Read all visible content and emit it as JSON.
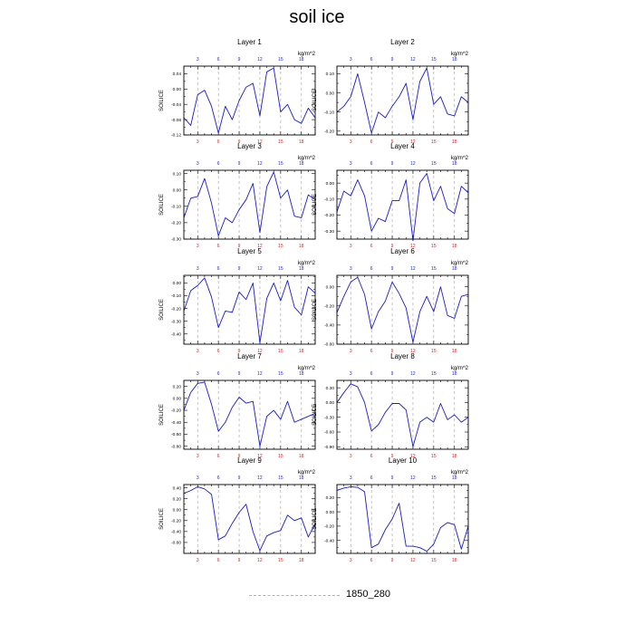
{
  "title": "soil ice",
  "legend": {
    "label": "1850_280",
    "color": "#c89ce0"
  },
  "colors": {
    "line": "#1a1acc",
    "top_ticks": "#2222cc",
    "bottom_ticks": "#cc2222",
    "grid": "#aaaaaa"
  },
  "chart_data": [
    {
      "type": "line",
      "title": "Layer 1",
      "units": "kg/m^2",
      "ylabel": "SOILICE",
      "x": [
        1,
        2,
        3,
        4,
        5,
        6,
        7,
        8,
        9,
        10,
        11,
        12,
        13,
        14,
        15,
        16,
        17,
        18,
        19,
        20
      ],
      "values": [
        -0.075,
        -0.095,
        -0.015,
        -0.003,
        -0.045,
        -0.115,
        -0.045,
        -0.08,
        -0.03,
        0.005,
        0.015,
        -0.07,
        0.045,
        0.055,
        -0.06,
        -0.04,
        -0.08,
        -0.09,
        -0.05,
        -0.075
      ],
      "xlim": [
        1,
        20
      ],
      "ylim": [
        -0.12,
        0.06
      ],
      "yticks": [
        0.04,
        0.0,
        -0.04,
        -0.08,
        -0.12
      ],
      "yticklabels": [
        "0.04",
        "0.00",
        "-0.04",
        "-0.08",
        "-0.12"
      ],
      "yminor": [
        0.02,
        -0.02,
        -0.06,
        -0.1
      ],
      "xticks": [
        3,
        6,
        9,
        12,
        15,
        18
      ]
    },
    {
      "type": "line",
      "title": "Layer 2",
      "units": "kg/m^2",
      "ylabel": "SOILICE",
      "x": [
        1,
        2,
        3,
        4,
        5,
        6,
        7,
        8,
        9,
        10,
        11,
        12,
        13,
        14,
        15,
        16,
        17,
        18,
        19,
        20
      ],
      "values": [
        -0.1,
        -0.07,
        -0.02,
        0.1,
        -0.05,
        -0.21,
        -0.1,
        -0.13,
        -0.07,
        -0.02,
        0.05,
        -0.14,
        0.06,
        0.13,
        -0.06,
        -0.02,
        -0.11,
        -0.12,
        -0.02,
        -0.05
      ],
      "xlim": [
        1,
        20
      ],
      "ylim": [
        -0.22,
        0.14
      ],
      "yticks": [
        0.1,
        0.0,
        -0.1,
        -0.2
      ],
      "yticklabels": [
        "0.10",
        "0.00",
        "-0.10",
        "-0.20"
      ],
      "yminor": [
        0.05,
        -0.05,
        -0.15
      ],
      "xticks": [
        3,
        6,
        9,
        12,
        15,
        18
      ]
    },
    {
      "type": "line",
      "title": "Layer 3",
      "units": "kg/m^2",
      "ylabel": "SOILICE",
      "x": [
        1,
        2,
        3,
        4,
        5,
        6,
        7,
        8,
        9,
        10,
        11,
        12,
        13,
        14,
        15,
        16,
        17,
        18,
        19,
        20
      ],
      "values": [
        -0.17,
        -0.05,
        -0.04,
        0.07,
        -0.08,
        -0.28,
        -0.17,
        -0.2,
        -0.12,
        -0.06,
        0.04,
        -0.26,
        0.02,
        0.11,
        -0.05,
        0.0,
        -0.16,
        -0.17,
        -0.03,
        -0.06
      ],
      "xlim": [
        1,
        20
      ],
      "ylim": [
        -0.3,
        0.12
      ],
      "yticks": [
        0.1,
        0.0,
        -0.1,
        -0.2,
        -0.3
      ],
      "yticklabels": [
        "0.10",
        "0.00",
        "-0.10",
        "-0.20",
        "-0.30"
      ],
      "yminor": [
        0.05,
        -0.05,
        -0.15,
        -0.25
      ],
      "xticks": [
        3,
        6,
        9,
        12,
        15,
        18
      ]
    },
    {
      "type": "line",
      "title": "Layer 4",
      "units": "kg/m^2",
      "ylabel": "SOILICE",
      "x": [
        1,
        2,
        3,
        4,
        5,
        6,
        7,
        8,
        9,
        10,
        11,
        12,
        13,
        14,
        15,
        16,
        17,
        18,
        19,
        20
      ],
      "values": [
        -0.18,
        -0.05,
        -0.08,
        0.02,
        -0.08,
        -0.3,
        -0.22,
        -0.24,
        -0.11,
        -0.11,
        0.02,
        -0.36,
        0.0,
        0.06,
        -0.11,
        -0.02,
        -0.16,
        -0.19,
        -0.02,
        -0.06
      ],
      "xlim": [
        1,
        20
      ],
      "ylim": [
        -0.35,
        0.08
      ],
      "yticks": [
        0.0,
        -0.1,
        -0.2,
        -0.3
      ],
      "yticklabels": [
        "0.00",
        "-0.10",
        "-0.20",
        "-0.30"
      ],
      "yminor": [
        0.05,
        -0.05,
        -0.15,
        -0.25
      ],
      "xticks": [
        3,
        6,
        9,
        12,
        15,
        18
      ]
    },
    {
      "type": "line",
      "title": "Layer 5",
      "units": "kg/m^2",
      "ylabel": "SOILICE",
      "x": [
        1,
        2,
        3,
        4,
        5,
        6,
        7,
        8,
        9,
        10,
        11,
        12,
        13,
        14,
        15,
        16,
        17,
        18,
        19,
        20
      ],
      "values": [
        -0.22,
        -0.06,
        -0.02,
        0.04,
        -0.11,
        -0.35,
        -0.22,
        -0.23,
        -0.07,
        -0.13,
        0.0,
        -0.47,
        -0.12,
        0.0,
        -0.14,
        0.02,
        -0.19,
        -0.25,
        -0.03,
        -0.08
      ],
      "xlim": [
        1,
        20
      ],
      "ylim": [
        -0.48,
        0.06
      ],
      "yticks": [
        0.0,
        -0.1,
        -0.2,
        -0.3,
        -0.4
      ],
      "yticklabels": [
        "0.00",
        "-0.10",
        "-0.20",
        "-0.30",
        "-0.40"
      ],
      "yminor": [
        0.05,
        -0.05,
        -0.15,
        -0.25,
        -0.35,
        -0.45
      ],
      "xticks": [
        3,
        6,
        9,
        12,
        15,
        18
      ]
    },
    {
      "type": "line",
      "title": "Layer 6",
      "units": "kg/m^2",
      "ylabel": "SOILICE",
      "x": [
        1,
        2,
        3,
        4,
        5,
        6,
        7,
        8,
        9,
        10,
        11,
        12,
        13,
        14,
        15,
        16,
        17,
        18,
        19,
        20
      ],
      "values": [
        -0.27,
        -0.1,
        0.05,
        0.1,
        -0.08,
        -0.44,
        -0.26,
        -0.15,
        0.05,
        -0.07,
        -0.22,
        -0.58,
        -0.26,
        -0.1,
        -0.26,
        0.0,
        -0.3,
        -0.33,
        -0.1,
        -0.08
      ],
      "xlim": [
        1,
        20
      ],
      "ylim": [
        -0.6,
        0.12
      ],
      "yticks": [
        0.0,
        -0.2,
        -0.4,
        -0.6
      ],
      "yticklabels": [
        "0.00",
        "-0.20",
        "-0.40",
        "-0.60"
      ],
      "yminor": [
        0.1,
        -0.1,
        -0.3,
        -0.5
      ],
      "xticks": [
        3,
        6,
        9,
        12,
        15,
        18
      ]
    },
    {
      "type": "line",
      "title": "Layer 7",
      "units": "kg/m^2",
      "ylabel": "SOILICE",
      "x": [
        1,
        2,
        3,
        4,
        5,
        6,
        7,
        8,
        9,
        10,
        11,
        12,
        13,
        14,
        15,
        16,
        17,
        18,
        19,
        20
      ],
      "values": [
        -0.2,
        0.1,
        0.25,
        0.27,
        -0.1,
        -0.55,
        -0.4,
        -0.15,
        0.02,
        -0.08,
        -0.05,
        -0.8,
        -0.3,
        -0.2,
        -0.35,
        -0.05,
        -0.4,
        -0.35,
        -0.3,
        -0.25
      ],
      "xlim": [
        1,
        20
      ],
      "ylim": [
        -0.85,
        0.3
      ],
      "yticks": [
        0.2,
        0.0,
        -0.2,
        -0.4,
        -0.6,
        -0.8
      ],
      "yticklabels": [
        "0.20",
        "0.00",
        "-0.20",
        "-0.40",
        "-0.60",
        "-0.80"
      ],
      "yminor": [
        0.1,
        -0.1,
        -0.3,
        -0.5,
        -0.7
      ],
      "xticks": [
        3,
        6,
        9,
        12,
        15,
        18
      ]
    },
    {
      "type": "line",
      "title": "Layer 8",
      "units": "kg/m^2",
      "ylabel": "SOILICE",
      "x": [
        1,
        2,
        3,
        4,
        5,
        6,
        7,
        8,
        9,
        10,
        11,
        12,
        13,
        14,
        15,
        16,
        17,
        18,
        19,
        20
      ],
      "values": [
        0.0,
        0.2,
        0.38,
        0.32,
        0.0,
        -0.58,
        -0.45,
        -0.2,
        -0.02,
        -0.02,
        -0.15,
        -0.9,
        -0.4,
        -0.3,
        -0.4,
        -0.02,
        -0.35,
        -0.25,
        -0.4,
        -0.3
      ],
      "xlim": [
        1,
        20
      ],
      "ylim": [
        -0.95,
        0.45
      ],
      "yticks": [
        0.3,
        0.0,
        -0.3,
        -0.6,
        -0.9
      ],
      "yticklabels": [
        "0.30",
        "0.00",
        "-0.30",
        "-0.60",
        "-0.90"
      ],
      "yminor": [
        0.15,
        -0.15,
        -0.45,
        -0.75
      ],
      "xticks": [
        3,
        6,
        9,
        12,
        15,
        18
      ]
    },
    {
      "type": "line",
      "title": "Layer 9",
      "units": "kg/m^2",
      "ylabel": "SOILICE",
      "x": [
        1,
        2,
        3,
        4,
        5,
        6,
        7,
        8,
        9,
        10,
        11,
        12,
        13,
        14,
        15,
        16,
        17,
        18,
        19,
        20
      ],
      "values": [
        0.3,
        0.35,
        0.42,
        0.38,
        0.28,
        -0.55,
        -0.48,
        -0.25,
        -0.05,
        0.1,
        -0.4,
        -0.75,
        -0.48,
        -0.42,
        -0.38,
        -0.1,
        -0.2,
        -0.15,
        -0.5,
        -0.25
      ],
      "xlim": [
        1,
        20
      ],
      "ylim": [
        -0.8,
        0.46
      ],
      "yticks": [
        0.4,
        0.2,
        0.0,
        -0.2,
        -0.4,
        -0.6
      ],
      "yticklabels": [
        "0.40",
        "0.20",
        "0.00",
        "-0.20",
        "-0.40",
        "-0.60"
      ],
      "yminor": [
        0.3,
        0.1,
        -0.1,
        -0.3,
        -0.5,
        -0.7
      ],
      "xticks": [
        3,
        6,
        9,
        12,
        15,
        18
      ]
    },
    {
      "type": "line",
      "title": "Layer 10",
      "units": "kg/m^2",
      "ylabel": "SOILICE",
      "x": [
        1,
        2,
        3,
        4,
        5,
        6,
        7,
        8,
        9,
        10,
        11,
        12,
        13,
        14,
        15,
        16,
        17,
        18,
        19,
        20
      ],
      "values": [
        0.3,
        0.33,
        0.35,
        0.34,
        0.28,
        -0.5,
        -0.45,
        -0.25,
        -0.1,
        0.12,
        -0.48,
        -0.48,
        -0.5,
        -0.55,
        -0.45,
        -0.22,
        -0.15,
        -0.18,
        -0.52,
        -0.2
      ],
      "xlim": [
        1,
        20
      ],
      "ylim": [
        -0.58,
        0.38
      ],
      "yticks": [
        0.2,
        0.0,
        -0.2,
        -0.4
      ],
      "yticklabels": [
        "0.20",
        "0.00",
        "-0.20",
        "-0.40"
      ],
      "yminor": [
        0.3,
        0.1,
        -0.1,
        -0.3,
        -0.5
      ],
      "xticks": [
        3,
        6,
        9,
        12,
        15,
        18
      ]
    }
  ]
}
